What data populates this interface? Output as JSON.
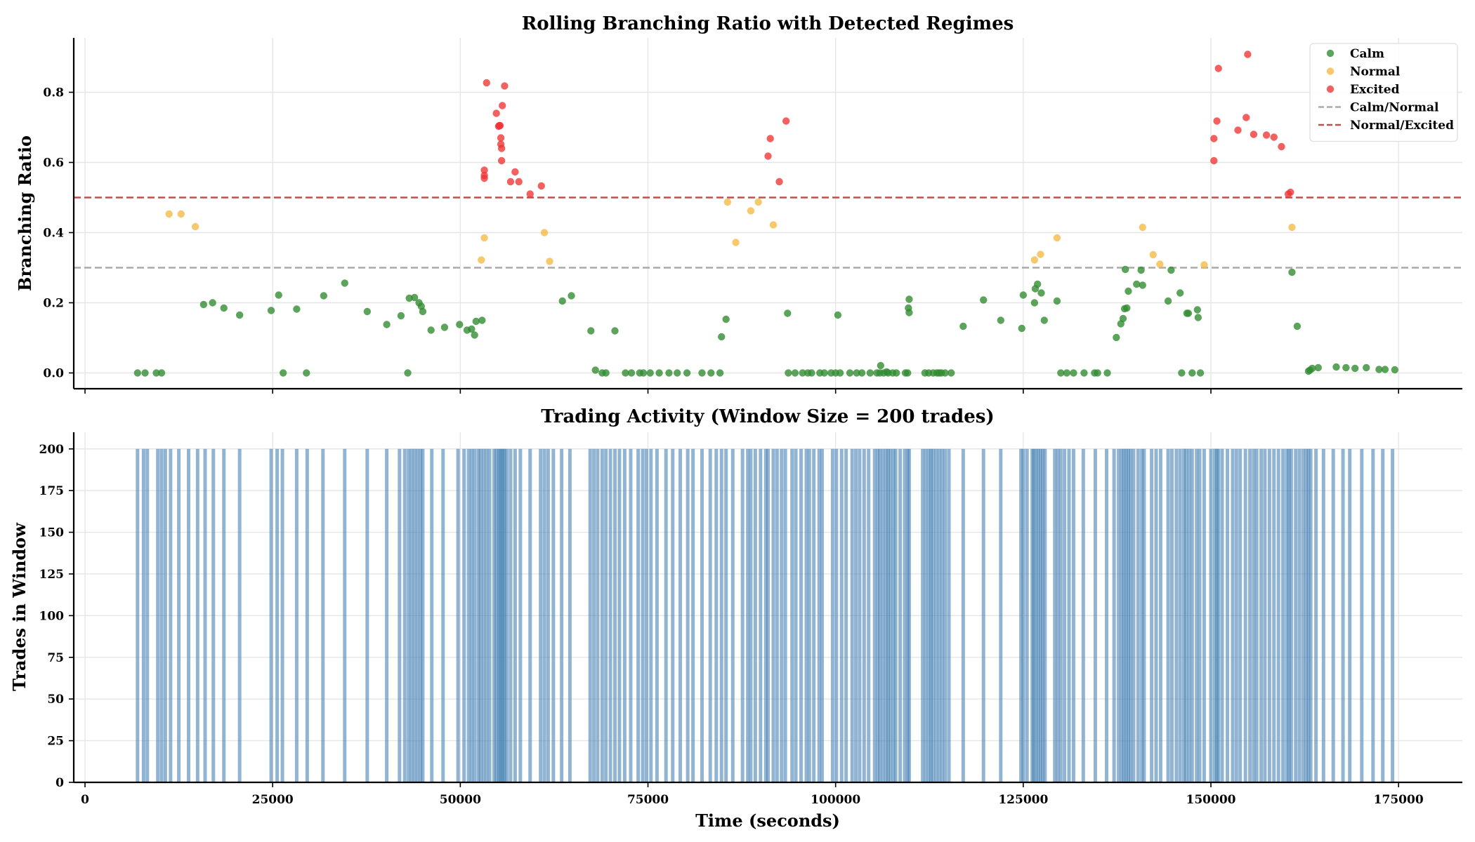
{
  "figure": {
    "title_top": "Rolling Branching Ratio with Detected Regimes",
    "title_bottom": "Trading Activity (Window Size = 200 trades)",
    "xlabel": "Time (seconds)"
  },
  "chart_data": [
    {
      "type": "scatter",
      "title": "Rolling Branching Ratio with Detected Regimes",
      "xlabel": "",
      "ylabel": "Branching Ratio",
      "xlim": [
        -1500,
        183500
      ],
      "ylim": [
        -0.045,
        0.955
      ],
      "xticks": [
        0,
        25000,
        50000,
        75000,
        100000,
        125000,
        150000,
        175000
      ],
      "yticks": [
        0.0,
        0.2,
        0.4,
        0.6,
        0.8
      ],
      "ytick_labels": [
        "0.0",
        "0.2",
        "0.4",
        "0.6",
        "0.8"
      ],
      "grid": true,
      "legend_position": "top-right",
      "legend": [
        {
          "label": "Calm",
          "kind": "marker",
          "color": "#2e8b2e"
        },
        {
          "label": "Normal",
          "kind": "marker",
          "color": "#f5b942"
        },
        {
          "label": "Excited",
          "kind": "marker",
          "color": "#ee3333"
        },
        {
          "label": "Calm/Normal",
          "kind": "dashed",
          "color": "#aaaaaa"
        },
        {
          "label": "Normal/Excited",
          "kind": "dashed",
          "color": "#c0504d"
        }
      ],
      "thresholds": [
        {
          "name": "Calm/Normal",
          "y": 0.3,
          "color": "#aaaaaa"
        },
        {
          "name": "Normal/Excited",
          "y": 0.5,
          "color": "#c0504d"
        }
      ],
      "series": [
        {
          "name": "Calm",
          "color": "#2e8b2e",
          "points": [
            [
              7000,
              0.0
            ],
            [
              8000,
              0.0
            ],
            [
              9500,
              0.0
            ],
            [
              10200,
              0.0
            ],
            [
              15800,
              0.195
            ],
            [
              17000,
              0.2
            ],
            [
              18500,
              0.185
            ],
            [
              20600,
              0.165
            ],
            [
              24800,
              0.178
            ],
            [
              25800,
              0.222
            ],
            [
              26400,
              0.0
            ],
            [
              28200,
              0.182
            ],
            [
              29500,
              0.0
            ],
            [
              31800,
              0.22
            ],
            [
              34600,
              0.256
            ],
            [
              37600,
              0.175
            ],
            [
              40200,
              0.138
            ],
            [
              42100,
              0.163
            ],
            [
              43000,
              0.0
            ],
            [
              43200,
              0.213
            ],
            [
              43900,
              0.215
            ],
            [
              44500,
              0.2
            ],
            [
              44800,
              0.19
            ],
            [
              45000,
              0.175
            ],
            [
              46100,
              0.122
            ],
            [
              47900,
              0.13
            ],
            [
              49900,
              0.138
            ],
            [
              50900,
              0.122
            ],
            [
              51500,
              0.125
            ],
            [
              51900,
              0.108
            ],
            [
              52100,
              0.147
            ],
            [
              52900,
              0.15
            ],
            [
              63600,
              0.205
            ],
            [
              64800,
              0.22
            ],
            [
              67400,
              0.12
            ],
            [
              68000,
              0.008
            ],
            [
              68900,
              0.0
            ],
            [
              69400,
              0.0
            ],
            [
              70600,
              0.12
            ],
            [
              72000,
              0.0
            ],
            [
              72800,
              0.0
            ],
            [
              73900,
              0.0
            ],
            [
              74400,
              0.0
            ],
            [
              75300,
              0.0
            ],
            [
              76500,
              0.0
            ],
            [
              77800,
              0.0
            ],
            [
              78900,
              0.0
            ],
            [
              80200,
              0.0
            ],
            [
              82200,
              0.0
            ],
            [
              83400,
              0.0
            ],
            [
              84600,
              0.0
            ],
            [
              84800,
              0.103
            ],
            [
              85400,
              0.153
            ],
            [
              93600,
              0.17
            ],
            [
              93700,
              0.0
            ],
            [
              94600,
              0.0
            ],
            [
              95600,
              0.0
            ],
            [
              96300,
              0.0
            ],
            [
              96800,
              0.0
            ],
            [
              97900,
              0.0
            ],
            [
              98500,
              0.0
            ],
            [
              99400,
              0.0
            ],
            [
              100000,
              0.0
            ],
            [
              100300,
              0.165
            ],
            [
              100600,
              0.0
            ],
            [
              101900,
              0.0
            ],
            [
              102800,
              0.0
            ],
            [
              103500,
              0.0
            ],
            [
              104600,
              0.0
            ],
            [
              105500,
              0.0
            ],
            [
              105900,
              0.0
            ],
            [
              106000,
              0.021
            ],
            [
              106400,
              0.0
            ],
            [
              106800,
              0.003
            ],
            [
              107000,
              0.0
            ],
            [
              107600,
              0.0
            ],
            [
              108100,
              0.0
            ],
            [
              109300,
              0.0
            ],
            [
              109600,
              0.0
            ],
            [
              109700,
              0.185
            ],
            [
              109800,
              0.21
            ],
            [
              109800,
              0.172
            ],
            [
              111900,
              0.0
            ],
            [
              112400,
              0.0
            ],
            [
              113000,
              0.0
            ],
            [
              113500,
              0.0
            ],
            [
              113800,
              0.0
            ],
            [
              114100,
              0.0
            ],
            [
              114600,
              0.0
            ],
            [
              115400,
              0.0
            ],
            [
              117000,
              0.133
            ],
            [
              119700,
              0.208
            ],
            [
              122000,
              0.15
            ],
            [
              124800,
              0.127
            ],
            [
              125000,
              0.222
            ],
            [
              126500,
              0.2
            ],
            [
              126600,
              0.24
            ],
            [
              126900,
              0.253
            ],
            [
              127400,
              0.228
            ],
            [
              127800,
              0.15
            ],
            [
              129500,
              0.205
            ],
            [
              130000,
              0.0
            ],
            [
              130800,
              0.0
            ],
            [
              131700,
              0.0
            ],
            [
              133100,
              0.0
            ],
            [
              134500,
              0.0
            ],
            [
              134900,
              0.0
            ],
            [
              136200,
              0.0
            ],
            [
              137400,
              0.101
            ],
            [
              138000,
              0.14
            ],
            [
              138300,
              0.155
            ],
            [
              138500,
              0.183
            ],
            [
              138600,
              0.295
            ],
            [
              138800,
              0.185
            ],
            [
              139000,
              0.233
            ],
            [
              140100,
              0.253
            ],
            [
              140700,
              0.293
            ],
            [
              140900,
              0.25
            ],
            [
              144300,
              0.205
            ],
            [
              144700,
              0.293
            ],
            [
              145900,
              0.228
            ],
            [
              146100,
              0.0
            ],
            [
              146800,
              0.17
            ],
            [
              147000,
              0.17
            ],
            [
              147500,
              0.0
            ],
            [
              148200,
              0.18
            ],
            [
              148300,
              0.158
            ],
            [
              148600,
              0.0
            ],
            [
              160800,
              0.287
            ],
            [
              161500,
              0.133
            ],
            [
              163000,
              0.005
            ],
            [
              163200,
              0.008
            ],
            [
              163500,
              0.013
            ],
            [
              164300,
              0.015
            ],
            [
              166700,
              0.017
            ],
            [
              168000,
              0.015
            ],
            [
              169200,
              0.013
            ],
            [
              170700,
              0.015
            ],
            [
              172400,
              0.01
            ],
            [
              173200,
              0.01
            ],
            [
              174500,
              0.009
            ]
          ]
        },
        {
          "name": "Normal",
          "color": "#f5b942",
          "points": [
            [
              11200,
              0.453
            ],
            [
              12800,
              0.453
            ],
            [
              14700,
              0.417
            ],
            [
              52800,
              0.322
            ],
            [
              53200,
              0.385
            ],
            [
              61200,
              0.4
            ],
            [
              61900,
              0.318
            ],
            [
              85600,
              0.487
            ],
            [
              86700,
              0.372
            ],
            [
              88700,
              0.462
            ],
            [
              89700,
              0.487
            ],
            [
              91700,
              0.422
            ],
            [
              126500,
              0.322
            ],
            [
              127300,
              0.338
            ],
            [
              129500,
              0.385
            ],
            [
              140900,
              0.415
            ],
            [
              142300,
              0.337
            ],
            [
              143200,
              0.31
            ],
            [
              149100,
              0.308
            ],
            [
              160800,
              0.415
            ]
          ]
        },
        {
          "name": "Excited",
          "color": "#ee3333",
          "points": [
            [
              53200,
              0.578
            ],
            [
              53200,
              0.563
            ],
            [
              53200,
              0.555
            ],
            [
              53500,
              0.827
            ],
            [
              54800,
              0.74
            ],
            [
              55100,
              0.703
            ],
            [
              55200,
              0.705
            ],
            [
              55300,
              0.705
            ],
            [
              55400,
              0.652
            ],
            [
              55400,
              0.67
            ],
            [
              55500,
              0.64
            ],
            [
              55500,
              0.605
            ],
            [
              55600,
              0.762
            ],
            [
              55900,
              0.818
            ],
            [
              56700,
              0.545
            ],
            [
              57300,
              0.573
            ],
            [
              57800,
              0.545
            ],
            [
              59300,
              0.51
            ],
            [
              60800,
              0.533
            ],
            [
              91000,
              0.618
            ],
            [
              91300,
              0.668
            ],
            [
              92500,
              0.545
            ],
            [
              93400,
              0.718
            ],
            [
              150400,
              0.668
            ],
            [
              150400,
              0.605
            ],
            [
              150800,
              0.718
            ],
            [
              151000,
              0.868
            ],
            [
              153600,
              0.692
            ],
            [
              154700,
              0.728
            ],
            [
              154900,
              0.908
            ],
            [
              155700,
              0.68
            ],
            [
              157400,
              0.678
            ],
            [
              158400,
              0.672
            ],
            [
              159400,
              0.645
            ],
            [
              160300,
              0.51
            ],
            [
              160600,
              0.515
            ]
          ]
        }
      ]
    },
    {
      "type": "bar",
      "title": "Trading Activity (Window Size = 200 trades)",
      "xlabel": "Time (seconds)",
      "ylabel": "Trades in Window",
      "xlim": [
        -1500,
        183500
      ],
      "ylim": [
        0,
        210
      ],
      "xticks": [
        0,
        25000,
        50000,
        75000,
        100000,
        125000,
        150000,
        175000
      ],
      "yticks": [
        0,
        25,
        50,
        75,
        100,
        125,
        150,
        175,
        200
      ],
      "grid": true,
      "bar_color": "#4682b4",
      "bar_height": 200,
      "bar_positions": [
        7000,
        7800,
        8300,
        9700,
        10200,
        10700,
        11400,
        12500,
        13800,
        15000,
        16000,
        17100,
        18500,
        20600,
        24800,
        25600,
        26300,
        28200,
        29600,
        31700,
        34600,
        37600,
        40200,
        41900,
        42600,
        43100,
        43500,
        43900,
        44300,
        44700,
        45000,
        46200,
        47700,
        49700,
        50500,
        51100,
        51500,
        51900,
        52400,
        52700,
        53100,
        53500,
        53900,
        54500,
        54800,
        55100,
        55300,
        55500,
        55700,
        55900,
        56200,
        56700,
        57300,
        58000,
        59300,
        60700,
        61200,
        61700,
        62400,
        63500,
        64600,
        67300,
        67800,
        68300,
        68900,
        69400,
        70000,
        70600,
        71200,
        71900,
        72700,
        73700,
        74300,
        74800,
        75400,
        76200,
        77400,
        78300,
        79300,
        80300,
        81000,
        82200,
        83300,
        84100,
        84800,
        85400,
        86300,
        87600,
        88300,
        88700,
        89300,
        90000,
        90700,
        91000,
        91700,
        92200,
        92800,
        93300,
        94200,
        94700,
        95400,
        96100,
        96500,
        97100,
        97800,
        98200,
        99600,
        100100,
        100800,
        101400,
        102200,
        102700,
        103200,
        103800,
        104400,
        105200,
        105600,
        105900,
        106300,
        106700,
        107000,
        107300,
        107700,
        108000,
        108600,
        109200,
        109600,
        109800,
        111600,
        112000,
        112400,
        112700,
        113000,
        113400,
        113800,
        114200,
        114600,
        115100,
        117000,
        119700,
        122000,
        124700,
        125000,
        125500,
        126200,
        126400,
        126700,
        127000,
        127300,
        127600,
        127900,
        129200,
        129600,
        130000,
        130500,
        131100,
        131700,
        133000,
        134600,
        136100,
        137100,
        137700,
        138100,
        138400,
        138700,
        139000,
        139300,
        139700,
        140300,
        140800,
        141100,
        142100,
        142700,
        143300,
        144300,
        144800,
        145400,
        145900,
        146400,
        146700,
        147100,
        147500,
        148100,
        148500,
        149100,
        150000,
        150500,
        150800,
        151000,
        151500,
        152200,
        152900,
        153400,
        153900,
        154600,
        155200,
        155700,
        156100,
        156700,
        157200,
        157800,
        158400,
        159000,
        159600,
        160100,
        160400,
        160700,
        161300,
        161800,
        162300,
        162700,
        163000,
        163300,
        164000,
        165000,
        166300,
        167600,
        168500,
        170100,
        171600,
        172900,
        174200
      ]
    }
  ]
}
